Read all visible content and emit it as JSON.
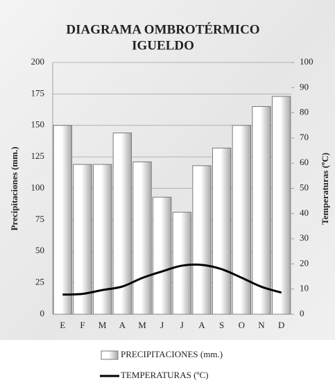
{
  "chart_data": {
    "type": "bar-line",
    "title": "DIAGRAMA OMBROTÉRMICO",
    "subtitle": "IGUELDO",
    "ylabel": "Precipitaciones (mm.)",
    "y2label": "Temperaturas (ºC)",
    "categories": [
      "E",
      "F",
      "M",
      "A",
      "M",
      "J",
      "J",
      "A",
      "S",
      "O",
      "N",
      "D"
    ],
    "series": [
      {
        "name": "PRECIPITACIONES (mm.)",
        "type": "bar",
        "color": "#d0d0d0",
        "values": [
          150,
          119,
          119,
          144,
          121,
          93,
          81,
          118,
          132,
          150,
          165,
          173
        ]
      },
      {
        "name": "TEMPERATURAS  (ºC)",
        "type": "line",
        "axis": "y2",
        "color": "#000000",
        "values": [
          7.8,
          8.1,
          9.6,
          11,
          14.4,
          17,
          19.3,
          19.6,
          17.9,
          14.5,
          10.9,
          8.6
        ]
      }
    ],
    "ylim": [
      0,
      200
    ],
    "yticks": [
      0,
      25,
      50,
      75,
      100,
      125,
      150,
      175,
      200
    ],
    "y2lim": [
      0,
      100
    ],
    "y2ticks": [
      0,
      10,
      20,
      30,
      40,
      50,
      60,
      70,
      80,
      90,
      100
    ],
    "grid": true
  }
}
